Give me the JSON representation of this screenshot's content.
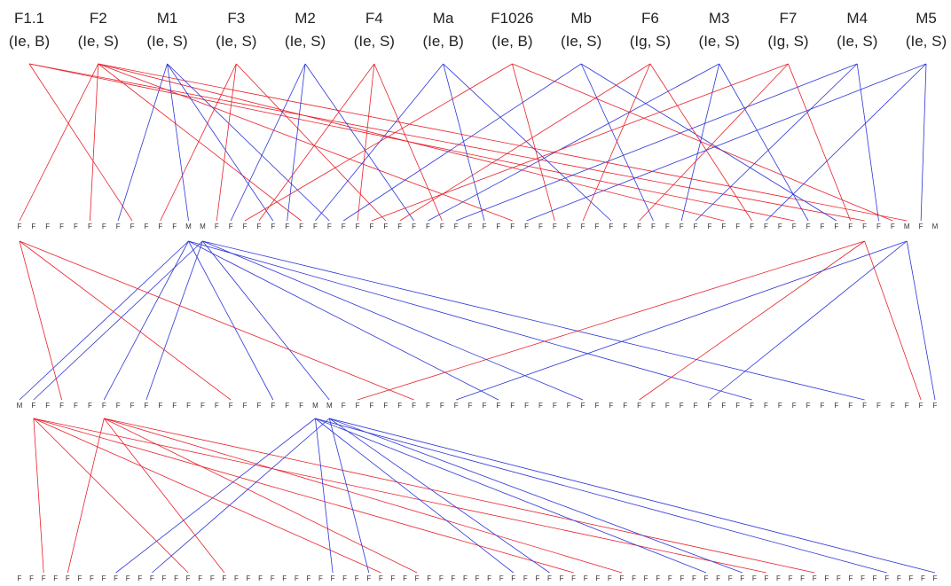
{
  "colors": {
    "female": "#e8202a",
    "male": "#2b35d6",
    "text": "#222222"
  },
  "founders": [
    {
      "name": "F1.1",
      "sub": "(Ie, B)",
      "sex": "F"
    },
    {
      "name": "F2",
      "sub": "(Ie, S)",
      "sex": "F"
    },
    {
      "name": "M1",
      "sub": "(Ie, S)",
      "sex": "M"
    },
    {
      "name": "F3",
      "sub": "(Ie, S)",
      "sex": "F"
    },
    {
      "name": "M2",
      "sub": "(Ie, S)",
      "sex": "M"
    },
    {
      "name": "F4",
      "sub": "(Ie, S)",
      "sex": "F"
    },
    {
      "name": "Ma",
      "sub": "(Ie, B)",
      "sex": "M"
    },
    {
      "name": "F1026",
      "sub": "(Ie, B)",
      "sex": "F"
    },
    {
      "name": "Mb",
      "sub": "(Ie, S)",
      "sex": "M"
    },
    {
      "name": "F6",
      "sub": "(Ig, S)",
      "sex": "F"
    },
    {
      "name": "M3",
      "sub": "(Ie, S)",
      "sex": "M"
    },
    {
      "name": "F7",
      "sub": "(Ig, S)",
      "sex": "F"
    },
    {
      "name": "M4",
      "sub": "(Ie, S)",
      "sex": "M"
    },
    {
      "name": "M5",
      "sub": "(Ie, S)",
      "sex": "M"
    }
  ],
  "generations": [
    {
      "labels": "FFFFFFFFFFFFMMFFFFFFFFFFFFFFFFFFFFFFFFFFFFFFFFFFFFFFFFFFFFFFFFFMFM",
      "edges": [
        [
          0,
          8
        ],
        [
          0,
          55
        ],
        [
          0,
          60
        ],
        [
          1,
          0
        ],
        [
          1,
          5
        ],
        [
          1,
          20
        ],
        [
          1,
          35
        ],
        [
          1,
          50
        ],
        [
          1,
          63
        ],
        [
          2,
          7
        ],
        [
          2,
          12
        ],
        [
          2,
          18
        ],
        [
          2,
          22
        ],
        [
          3,
          10
        ],
        [
          3,
          14
        ],
        [
          3,
          26
        ],
        [
          4,
          15
        ],
        [
          4,
          19
        ],
        [
          4,
          28
        ],
        [
          5,
          17
        ],
        [
          5,
          24
        ],
        [
          5,
          30
        ],
        [
          6,
          21
        ],
        [
          6,
          33
        ],
        [
          6,
          42
        ],
        [
          7,
          16
        ],
        [
          7,
          38
        ],
        [
          7,
          62
        ],
        [
          8,
          23
        ],
        [
          8,
          45
        ],
        [
          8,
          58
        ],
        [
          9,
          27
        ],
        [
          9,
          40
        ],
        [
          9,
          52
        ],
        [
          10,
          29
        ],
        [
          10,
          47
        ],
        [
          10,
          56
        ],
        [
          11,
          25
        ],
        [
          11,
          44
        ],
        [
          11,
          59
        ],
        [
          12,
          31
        ],
        [
          12,
          48
        ],
        [
          12,
          61
        ],
        [
          13,
          36
        ],
        [
          13,
          53
        ],
        [
          13,
          64
        ]
      ]
    },
    {
      "labels": "MFFFFFFFFFFFFFFFFFFFFMMFFFFFFFFFFFFFFFFFFFFFFFFFFFFFFFFFFFFFFFFFFF",
      "edges": [
        [
          12,
          0
        ],
        [
          12,
          6
        ],
        [
          12,
          18
        ],
        [
          12,
          34
        ],
        [
          12,
          52
        ],
        [
          13,
          1
        ],
        [
          13,
          9
        ],
        [
          13,
          22
        ],
        [
          13,
          40
        ],
        [
          13,
          60
        ],
        [
          0,
          3
        ],
        [
          0,
          15
        ],
        [
          0,
          28
        ],
        [
          60,
          24
        ],
        [
          60,
          44
        ],
        [
          60,
          64
        ],
        [
          63,
          31
        ],
        [
          63,
          49
        ],
        [
          63,
          65
        ]
      ]
    },
    {
      "labels": "FFFFFFFFFFFFFFFFFFFFFFFFFFFFFFFFFFFFFFFFFFFFFFFFFFFFFFFFFFFFFFFFFFFFFFFFFFFFF",
      "edges": [
        [
          1,
          2
        ],
        [
          1,
          14
        ],
        [
          1,
          30
        ],
        [
          1,
          46
        ],
        [
          1,
          62
        ],
        [
          6,
          4
        ],
        [
          6,
          17
        ],
        [
          6,
          33
        ],
        [
          6,
          50
        ],
        [
          6,
          66
        ],
        [
          21,
          8
        ],
        [
          21,
          26
        ],
        [
          21,
          41
        ],
        [
          21,
          57
        ],
        [
          21,
          72
        ],
        [
          22,
          11
        ],
        [
          22,
          29
        ],
        [
          22,
          44
        ],
        [
          22,
          60
        ],
        [
          22,
          76
        ]
      ]
    }
  ]
}
